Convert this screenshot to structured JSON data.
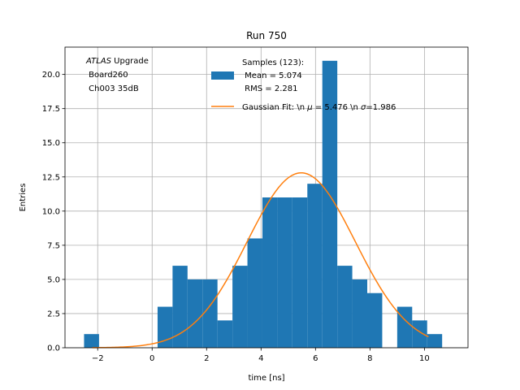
{
  "chart_data": {
    "type": "bar",
    "title": "Run 750",
    "xlabel": "time [ns]",
    "ylabel": "Entries",
    "xlim": [
      -3.2,
      11.6
    ],
    "ylim": [
      0,
      22
    ],
    "xticks": [
      -2,
      0,
      2,
      4,
      6,
      8,
      10
    ],
    "yticks": [
      0,
      2.5,
      5,
      7.5,
      10,
      12.5,
      15,
      17.5,
      20
    ],
    "ytick_labels": [
      "0.0",
      "2.5",
      "5.0",
      "7.5",
      "10.0",
      "12.5",
      "15.0",
      "17.5",
      "20.0"
    ],
    "grid": true,
    "bar_color": "#1f77b4",
    "fit_color": "#ff7f0e",
    "histogram": {
      "bin_width": 0.55,
      "bins": [
        {
          "left": -2.5,
          "count": 1
        },
        {
          "left": 0.2,
          "count": 3
        },
        {
          "left": 0.75,
          "count": 6
        },
        {
          "left": 1.3,
          "count": 5
        },
        {
          "left": 1.85,
          "count": 5
        },
        {
          "left": 2.4,
          "count": 2
        },
        {
          "left": 2.95,
          "count": 6
        },
        {
          "left": 3.5,
          "count": 8
        },
        {
          "left": 4.05,
          "count": 11
        },
        {
          "left": 4.6,
          "count": 11
        },
        {
          "left": 5.15,
          "count": 11
        },
        {
          "left": 5.7,
          "count": 12
        },
        {
          "left": 6.25,
          "count": 21
        },
        {
          "left": 6.8,
          "count": 6
        },
        {
          "left": 7.35,
          "count": 5
        },
        {
          "left": 7.9,
          "count": 4
        },
        {
          "left": 9.0,
          "count": 3
        },
        {
          "left": 9.55,
          "count": 2
        },
        {
          "left": 10.1,
          "count": 1
        }
      ]
    },
    "fit": {
      "amplitude": 12.8,
      "mu": 5.476,
      "sigma": 1.986,
      "x_range": [
        -2.2,
        10.15
      ]
    },
    "legend": {
      "placement": "top-center",
      "samples_lines": [
        "Samples (123):",
        " Mean = 5.074",
        " RMS = 2.281"
      ],
      "fit_label_prefix": "Gaussian Fit: \\n ",
      "fit_mu_symbol": "μ",
      "fit_mu_text": " = 5.476 \\n ",
      "fit_sigma_symbol": "σ",
      "fit_sigma_text": "=1.986"
    },
    "annotation": {
      "atlas_italic": "ATLAS",
      "atlas_suffix": " Upgrade",
      "line2": " Board260",
      "line3": " Ch003 35dB"
    }
  }
}
